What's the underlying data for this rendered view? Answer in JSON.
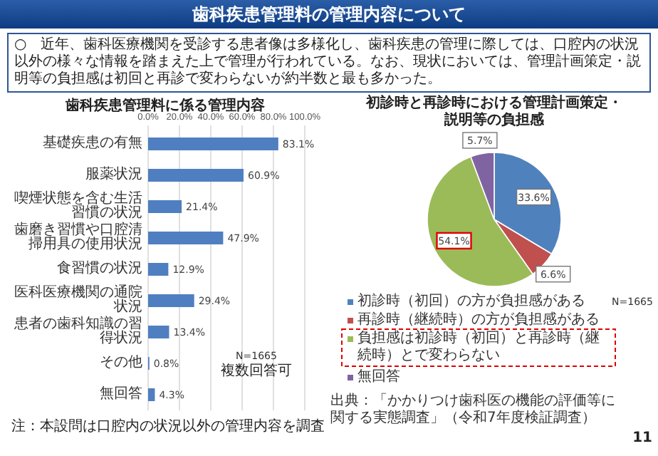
{
  "chart_data": [
    {
      "type": "other",
      "title": "歯科疾患管理料の管理内容について",
      "annotations": [
        "○　近年、歯科医療機関を受診する患者像は多様化し、歯科疾患の管理に際しては、口腔内の状況以外の様々な情報を踏まえた上で管理が行われている。なお、現状においては、管理計画策定・説明等の負担感は初回と再診で変わらないが約半数と最も多かった。",
        "11"
      ]
    },
    {
      "type": "bar",
      "orientation": "horizontal",
      "title": "歯科疾患管理料に係る管理内容",
      "categories": [
        "基礎疾患の有無",
        "服薬状況",
        "喫煙状態を含む生活習慣の状況",
        "歯磨き習慣や口腔清掃用具の使用状況",
        "食習慣の状況",
        "医科医療機関の通院状況",
        "患者の歯科知識の習得状況",
        "その他",
        "無回答"
      ],
      "values": [
        83.1,
        60.9,
        21.4,
        47.9,
        12.9,
        29.4,
        13.4,
        0.8,
        4.3
      ],
      "value_labels": [
        "83.1%",
        "60.9%",
        "21.4%",
        "47.9%",
        "12.9%",
        "29.4%",
        "13.4%",
        "0.8%",
        "4.3%"
      ],
      "color": "#4f7fc0",
      "xlim": [
        0,
        100
      ],
      "xticks": [
        {
          "value": 0,
          "label": "0.0%"
        },
        {
          "value": 20,
          "label": "20.0%"
        },
        {
          "value": 40,
          "label": "40.0%"
        },
        {
          "value": 60,
          "label": "60.0%"
        },
        {
          "value": 80,
          "label": "80.0%"
        },
        {
          "value": 100,
          "label": "100.0%"
        }
      ],
      "grid": "x",
      "annotations": [
        "N=1665",
        "複数回答可",
        "注：本設問は口腔内の状況以外の管理内容を調査"
      ]
    },
    {
      "type": "pie",
      "title": "初診時と再診時における管理計画策定・説明等の負担感",
      "categories": [
        "初診時（初回）の方が負担感がある",
        "再診時（継続時）の方が負担感がある",
        "負担感は初診時（初回）と再診時（継続時）とで変わらない",
        "無回答"
      ],
      "values": [
        33.6,
        6.6,
        54.1,
        5.7
      ],
      "value_labels": [
        "33.6%",
        "6.6%",
        "54.1%",
        "5.7%"
      ],
      "colors": [
        "#4f81bd",
        "#c0504d",
        "#9bbb59",
        "#8064a2"
      ],
      "legend": "bottom",
      "annotations": [
        "N=1665",
        "出典：「かかりつけ歯科医の機能の評価等に関する実態調査」（令和7年度検証調査）"
      ]
    }
  ]
}
